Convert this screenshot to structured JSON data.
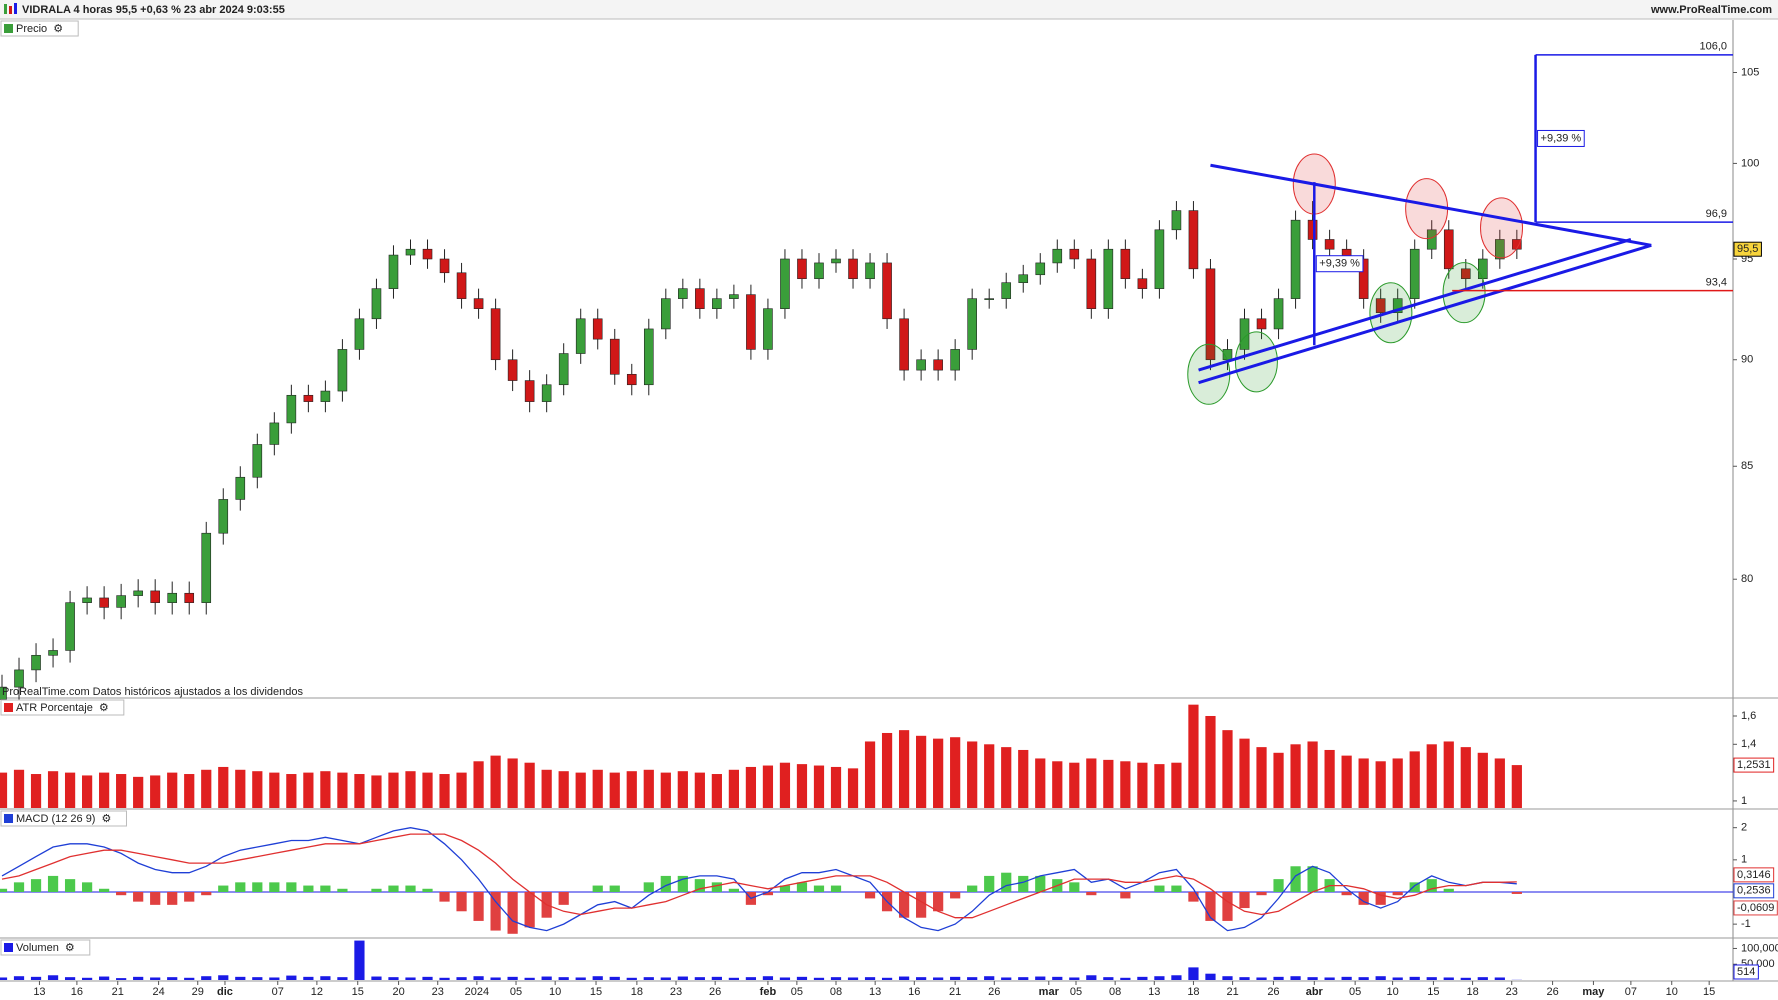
{
  "header": {
    "title": "VIDRALA 4 horas 95,5 +0,63 % 23 abr 2024 9:03:55",
    "site": "www.ProRealTime.com"
  },
  "chart_data": [
    {
      "type": "candlestick",
      "title": "Precio",
      "note": "ProRealTime.com Datos históricos ajustados a los dividendos",
      "log_scale": true,
      "ylim": [
        75.1,
        108
      ],
      "yticks": [
        80,
        85,
        90,
        95,
        100,
        105
      ],
      "up_color": "#3a9e3a",
      "down_color": "#d01818",
      "last_label": "95,5",
      "open": [
        75,
        75.5,
        76.2,
        76.8,
        77,
        79,
        79.2,
        78.8,
        79.3,
        79.5,
        79,
        79.4,
        79,
        82,
        83.5,
        84.5,
        86,
        87,
        88.3,
        88,
        88.5,
        90.5,
        92,
        93.5,
        95.2,
        95.5,
        95,
        94.3,
        93,
        92.5,
        90,
        89,
        88,
        88.8,
        90.3,
        92,
        91,
        89.3,
        88.8,
        91.5,
        93,
        93.5,
        92.5,
        93,
        93.2,
        90.5,
        92.5,
        95,
        94,
        94.8,
        95,
        94,
        94.8,
        92,
        89.5,
        90,
        89.5,
        90.5,
        93,
        93,
        93.8,
        94.2,
        94.8,
        95.5,
        95,
        92.5,
        95.5,
        94,
        93.5,
        96.5,
        97.5,
        94.5,
        90,
        90.5,
        92,
        91.5,
        93,
        97,
        96,
        95.5,
        95,
        93,
        92.3,
        93,
        95.5,
        96.5,
        94.5,
        94,
        95,
        96
      ],
      "high": [
        76,
        76.7,
        77.3,
        77.5,
        79.5,
        79.7,
        79.7,
        79.8,
        80,
        80,
        79.9,
        79.9,
        82.5,
        84,
        85,
        86.5,
        87.5,
        88.8,
        88.8,
        89,
        91,
        92.5,
        94,
        95.7,
        96,
        96,
        95.5,
        94.8,
        93.5,
        93,
        90.5,
        89.5,
        89.3,
        90.8,
        92.5,
        92.5,
        91.5,
        89.8,
        92,
        93.5,
        94,
        94,
        93.5,
        93.7,
        93.7,
        93,
        95.5,
        95.5,
        95.3,
        95.5,
        95.5,
        95.3,
        95.3,
        92.5,
        90.5,
        90.5,
        91,
        93.5,
        93.5,
        94.3,
        94.7,
        95.3,
        96,
        96,
        95.5,
        96,
        96,
        94.5,
        97,
        98,
        98,
        95,
        91,
        92.5,
        92.5,
        93.5,
        97.5,
        98,
        96.5,
        96,
        95.5,
        93.5,
        93.5,
        96,
        97,
        97,
        95,
        95.5,
        96.5,
        96.5
      ],
      "low": [
        74.5,
        75,
        75.7,
        76.3,
        76.5,
        78.5,
        78.3,
        78.3,
        78.8,
        78.5,
        78.5,
        78.5,
        78.5,
        81.5,
        83,
        84,
        85.5,
        86.5,
        87.5,
        87.5,
        88,
        90,
        91.5,
        93,
        94.7,
        94.5,
        93.8,
        92.5,
        92,
        89.5,
        88.5,
        87.5,
        87.5,
        88.3,
        89.8,
        90.5,
        88.8,
        88.3,
        88.3,
        91,
        92.5,
        92,
        92,
        92.5,
        90,
        90,
        92,
        93.5,
        93.5,
        94.3,
        93.5,
        93.5,
        91.5,
        89,
        89,
        89,
        89,
        90,
        92.5,
        92.5,
        93.3,
        93.7,
        94.3,
        94.5,
        92,
        92,
        93.5,
        93,
        93,
        96,
        94,
        89.5,
        89.5,
        90,
        91,
        91,
        92.5,
        95.5,
        95,
        94.5,
        92.5,
        91.8,
        91.8,
        92.5,
        95,
        94,
        93.5,
        93.5,
        94.5,
        95
      ],
      "close": [
        75.5,
        76.2,
        76.8,
        77,
        79,
        79.2,
        78.8,
        79.3,
        79.5,
        79,
        79.4,
        79,
        82,
        83.5,
        84.5,
        86,
        87,
        88.3,
        88,
        88.5,
        90.5,
        92,
        93.5,
        95.2,
        95.5,
        95,
        94.3,
        93,
        92.5,
        90,
        89,
        88,
        88.8,
        90.3,
        92,
        91,
        89.3,
        88.8,
        91.5,
        93,
        93.5,
        92.5,
        93,
        93.2,
        90.5,
        92.5,
        95,
        94,
        94.8,
        95,
        94,
        94.8,
        92,
        89.5,
        90,
        89.5,
        90.5,
        93,
        93,
        93.8,
        94.2,
        94.8,
        95.5,
        95,
        92.5,
        95.5,
        94,
        93.5,
        96.5,
        97.5,
        94.5,
        90,
        90.5,
        92,
        91.5,
        93,
        97,
        96,
        95.5,
        95,
        93,
        92.3,
        93,
        95.5,
        96.5,
        94.5,
        94,
        95,
        96,
        95.5
      ],
      "trendlines": [
        {
          "x": [
            71,
            96.9
          ],
          "y": [
            99.9,
            95.7
          ],
          "color": "#1a1ae6"
        },
        {
          "x": [
            70.3,
            96.9
          ],
          "y": [
            88.9,
            95.7
          ],
          "color": "#1a1ae6"
        },
        {
          "x": [
            70.3,
            95.7
          ],
          "y": [
            89.5,
            96.0
          ],
          "color": "#1a1ae6"
        }
      ],
      "circles": [
        {
          "x": 77.1,
          "y": 98.9,
          "color": "#e03030"
        },
        {
          "x": 83.7,
          "y": 97.6,
          "color": "#e03030"
        },
        {
          "x": 88.1,
          "y": 96.6,
          "color": "#e03030"
        },
        {
          "x": 70.9,
          "y": 89.3,
          "color": "#2a9a2a"
        },
        {
          "x": 73.7,
          "y": 89.9,
          "color": "#2a9a2a"
        },
        {
          "x": 81.6,
          "y": 92.3,
          "color": "#2a9a2a"
        },
        {
          "x": 85.9,
          "y": 93.3,
          "color": "#2a9a2a"
        }
      ],
      "levels": [
        {
          "value": 106.0,
          "label": "106,0",
          "from": 90.1,
          "color": "#1a1ae6"
        },
        {
          "value": 96.9,
          "label": "96,9",
          "from": 90.1,
          "color": "#1a1ae6"
        },
        {
          "value": 93.4,
          "label": "93,4",
          "from": 85.2,
          "color": "#e01818"
        }
      ],
      "measures": [
        {
          "x": 77.1,
          "y": [
            90.7,
            99.0
          ],
          "label": "+9,39 %",
          "color": "#1a1ae6"
        },
        {
          "x": 90.1,
          "y": [
            96.9,
            106.0
          ],
          "label": "+9,39 %",
          "color": "#1a1ae6"
        }
      ]
    },
    {
      "type": "bar",
      "title": "ATR Porcentaje",
      "color": "#e02020",
      "ylim": [
        0.95,
        1.72
      ],
      "yticks": [
        {
          "value": 1.6,
          "label": "1,6"
        },
        {
          "value": 1.4,
          "label": "1,4"
        },
        1
      ],
      "last_label": "1,2531",
      "values": [
        1.2,
        1.22,
        1.19,
        1.21,
        1.2,
        1.18,
        1.2,
        1.19,
        1.17,
        1.18,
        1.2,
        1.19,
        1.22,
        1.24,
        1.22,
        1.21,
        1.2,
        1.19,
        1.2,
        1.21,
        1.2,
        1.19,
        1.18,
        1.2,
        1.21,
        1.2,
        1.19,
        1.2,
        1.28,
        1.32,
        1.3,
        1.27,
        1.22,
        1.21,
        1.2,
        1.22,
        1.2,
        1.21,
        1.22,
        1.2,
        1.21,
        1.2,
        1.19,
        1.22,
        1.24,
        1.25,
        1.27,
        1.26,
        1.25,
        1.24,
        1.23,
        1.42,
        1.48,
        1.5,
        1.46,
        1.44,
        1.45,
        1.42,
        1.4,
        1.38,
        1.36,
        1.3,
        1.28,
        1.27,
        1.3,
        1.29,
        1.28,
        1.27,
        1.26,
        1.27,
        1.68,
        1.6,
        1.5,
        1.44,
        1.38,
        1.34,
        1.4,
        1.42,
        1.36,
        1.32,
        1.3,
        1.28,
        1.3,
        1.35,
        1.4,
        1.42,
        1.38,
        1.34,
        1.3,
        1.2531
      ]
    },
    {
      "type": "macd",
      "title": "MACD (12 26 9)",
      "ylim": [
        -1.4,
        2.55
      ],
      "yticks": [
        2,
        1,
        -1
      ],
      "zero_color": "#1a1ae6",
      "lines": [
        {
          "color": "#1f3fd6",
          "last_label": "0,2536",
          "values": [
            0.5,
            0.8,
            1.1,
            1.4,
            1.5,
            1.5,
            1.4,
            1.2,
            0.9,
            0.7,
            0.6,
            0.6,
            0.8,
            1.1,
            1.3,
            1.4,
            1.5,
            1.6,
            1.6,
            1.7,
            1.6,
            1.5,
            1.7,
            1.9,
            2.0,
            1.9,
            1.5,
            1.0,
            0.4,
            -0.3,
            -0.9,
            -1.1,
            -1.2,
            -1.0,
            -0.7,
            -0.4,
            -0.3,
            -0.5,
            -0.1,
            0.2,
            0.4,
            0.5,
            0.5,
            0.4,
            -0.2,
            0.0,
            0.4,
            0.6,
            0.6,
            0.7,
            0.5,
            0.3,
            -0.3,
            -0.8,
            -1.1,
            -1.2,
            -1.0,
            -0.6,
            -0.1,
            0.2,
            0.3,
            0.5,
            0.6,
            0.7,
            0.3,
            0.4,
            0.1,
            0.3,
            0.6,
            0.7,
            0.1,
            -0.8,
            -1.2,
            -1.1,
            -0.8,
            -0.2,
            0.5,
            0.8,
            0.6,
            0.1,
            -0.3,
            -0.5,
            -0.3,
            0.2,
            0.5,
            0.3,
            0.2,
            0.3,
            0.3,
            0.2536
          ]
        },
        {
          "color": "#e03030",
          "last_label": "0,3146",
          "values": [
            0.4,
            0.5,
            0.7,
            0.9,
            1.1,
            1.2,
            1.3,
            1.3,
            1.2,
            1.1,
            1.0,
            0.9,
            0.9,
            0.9,
            1.0,
            1.1,
            1.2,
            1.3,
            1.4,
            1.5,
            1.5,
            1.5,
            1.6,
            1.7,
            1.8,
            1.8,
            1.8,
            1.6,
            1.3,
            0.9,
            0.4,
            0.0,
            -0.4,
            -0.6,
            -0.7,
            -0.6,
            -0.5,
            -0.5,
            -0.4,
            -0.3,
            -0.1,
            0.1,
            0.2,
            0.3,
            0.2,
            0.1,
            0.2,
            0.3,
            0.4,
            0.5,
            0.5,
            0.5,
            0.3,
            0.0,
            -0.3,
            -0.6,
            -0.8,
            -0.8,
            -0.6,
            -0.4,
            -0.2,
            0.0,
            0.2,
            0.4,
            0.4,
            0.4,
            0.3,
            0.3,
            0.4,
            0.5,
            0.4,
            0.1,
            -0.3,
            -0.6,
            -0.7,
            -0.6,
            -0.3,
            0.0,
            0.2,
            0.2,
            0.1,
            -0.1,
            -0.2,
            -0.1,
            0.1,
            0.2,
            0.2,
            0.3,
            0.3,
            0.3146
          ]
        }
      ],
      "histogram": {
        "up_color": "#4cc94c",
        "down_color": "#e04040",
        "last_label": "-0,0609",
        "values": [
          0.1,
          0.3,
          0.4,
          0.5,
          0.4,
          0.3,
          0.1,
          -0.1,
          -0.3,
          -0.4,
          -0.4,
          -0.3,
          -0.1,
          0.2,
          0.3,
          0.3,
          0.3,
          0.3,
          0.2,
          0.2,
          0.1,
          0,
          0.1,
          0.2,
          0.2,
          0.1,
          -0.3,
          -0.6,
          -0.9,
          -1.2,
          -1.3,
          -1.1,
          -0.8,
          -0.4,
          0,
          0.2,
          0.2,
          0,
          0.3,
          0.5,
          0.5,
          0.4,
          0.3,
          0.1,
          -0.4,
          -0.1,
          0.2,
          0.3,
          0.2,
          0.2,
          0,
          -0.2,
          -0.6,
          -0.8,
          -0.8,
          -0.6,
          -0.2,
          0.2,
          0.5,
          0.6,
          0.5,
          0.5,
          0.4,
          0.3,
          -0.1,
          0,
          -0.2,
          0,
          0.2,
          0.2,
          -0.3,
          -0.9,
          -0.9,
          -0.5,
          -0.1,
          0.4,
          0.8,
          0.8,
          0.4,
          -0.1,
          -0.4,
          -0.4,
          -0.1,
          0.3,
          0.4,
          0.1,
          0,
          0,
          0,
          -0.0609
        ]
      }
    },
    {
      "type": "bar",
      "title": "Volumen",
      "color": "#1a1ae6",
      "ylim": [
        0,
        130000
      ],
      "yticks": [
        {
          "value": 100000,
          "label": "100,000"
        },
        {
          "value": 50000,
          "label": "50,000"
        }
      ],
      "values": [
        8000,
        12000,
        10000,
        15000,
        9000,
        7000,
        11000,
        6000,
        10000,
        8000,
        9000,
        7000,
        12000,
        15000,
        10000,
        9000,
        8000,
        14000,
        10000,
        12000,
        9000,
        125000,
        11000,
        9000,
        8000,
        10000,
        7000,
        9000,
        12000,
        8000,
        10000,
        7000,
        11000,
        9000,
        8000,
        12000,
        10000,
        7000,
        9000,
        8000,
        11000,
        9000,
        10000,
        7000,
        9000,
        12000,
        8000,
        10000,
        7000,
        9000,
        8000,
        9000,
        7000,
        11000,
        9000,
        8000,
        10000,
        9000,
        12000,
        8000,
        9000,
        11000,
        10000,
        8000,
        15000,
        9000,
        7000,
        10000,
        12000,
        15000,
        40000,
        20000,
        12000,
        9000,
        8000,
        10000,
        12000,
        9000,
        8000,
        10000,
        9000,
        12000,
        8000,
        10000,
        9000,
        8000,
        7000,
        9000,
        8000,
        514
      ],
      "xlim": [
        0,
        101.7
      ],
      "xticks": [
        {
          "value": 2.2,
          "label": "13"
        },
        {
          "value": 4.4,
          "label": "16"
        },
        {
          "value": 6.8,
          "label": "21"
        },
        {
          "value": 9.2,
          "label": "24"
        },
        {
          "value": 11.5,
          "label": "29"
        },
        {
          "value": 13.1,
          "label": "dic"
        },
        {
          "value": 16.2,
          "label": "07"
        },
        {
          "value": 18.5,
          "label": "12"
        },
        {
          "value": 20.9,
          "label": "15"
        },
        {
          "value": 23.3,
          "label": "20"
        },
        {
          "value": 25.6,
          "label": "23"
        },
        {
          "value": 27.9,
          "label": "2024"
        },
        {
          "value": 30.2,
          "label": "05"
        },
        {
          "value": 32.5,
          "label": "10"
        },
        {
          "value": 34.9,
          "label": "15"
        },
        {
          "value": 37.3,
          "label": "18"
        },
        {
          "value": 39.6,
          "label": "23"
        },
        {
          "value": 41.9,
          "label": "26"
        },
        {
          "value": 45,
          "label": "feb"
        },
        {
          "value": 46.7,
          "label": "05"
        },
        {
          "value": 49,
          "label": "08"
        },
        {
          "value": 51.3,
          "label": "13"
        },
        {
          "value": 53.6,
          "label": "16"
        },
        {
          "value": 56,
          "label": "21"
        },
        {
          "value": 58.3,
          "label": "26"
        },
        {
          "value": 61.5,
          "label": "mar"
        },
        {
          "value": 63.1,
          "label": "05"
        },
        {
          "value": 65.4,
          "label": "08"
        },
        {
          "value": 67.7,
          "label": "13"
        },
        {
          "value": 70,
          "label": "18"
        },
        {
          "value": 72.3,
          "label": "21"
        },
        {
          "value": 74.7,
          "label": "26"
        },
        {
          "value": 77.1,
          "label": "abr"
        },
        {
          "value": 79.5,
          "label": "05"
        },
        {
          "value": 81.7,
          "label": "10"
        },
        {
          "value": 84.1,
          "label": "15"
        },
        {
          "value": 86.4,
          "label": "18"
        },
        {
          "value": 88.7,
          "label": "23"
        },
        {
          "value": 91.1,
          "label": "26"
        },
        {
          "value": 93.5,
          "label": "may"
        },
        {
          "value": 95.7,
          "label": "07"
        },
        {
          "value": 98.1,
          "label": "10"
        },
        {
          "value": 100.3,
          "label": "15"
        }
      ]
    }
  ]
}
